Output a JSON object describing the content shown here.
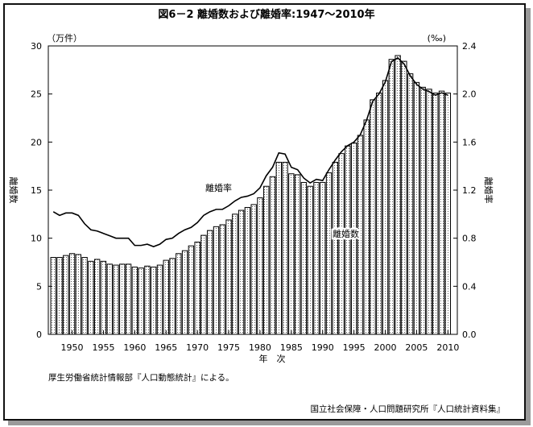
{
  "chart_data": {
    "type": "bar+line",
    "title": "図6－2 離婚数および離婚率:1947～2010年",
    "xlabel": "年　次",
    "ylabel_left": "離婚数",
    "ylabel_right": "離婚率",
    "unit_left": "（万件）",
    "unit_right": "(‰)",
    "ylim_left": [
      0,
      30
    ],
    "ylim_right": [
      0,
      2.4
    ],
    "y_ticks_left": [
      "0",
      "5",
      "10",
      "15",
      "20",
      "25",
      "30"
    ],
    "y_ticks_right": [
      "0.0",
      "0.4",
      "0.8",
      "1.2",
      "1.6",
      "2.0",
      "2.4"
    ],
    "x_ticks": [
      "1950",
      "1955",
      "1960",
      "1965",
      "1970",
      "1975",
      "1980",
      "1985",
      "1990",
      "1995",
      "2000",
      "2005",
      "2010"
    ],
    "x": [
      1947,
      1948,
      1949,
      1950,
      1951,
      1952,
      1953,
      1954,
      1955,
      1956,
      1957,
      1958,
      1959,
      1960,
      1961,
      1962,
      1963,
      1964,
      1965,
      1966,
      1967,
      1968,
      1969,
      1970,
      1971,
      1972,
      1973,
      1974,
      1975,
      1976,
      1977,
      1978,
      1979,
      1980,
      1981,
      1982,
      1983,
      1984,
      1985,
      1986,
      1987,
      1988,
      1989,
      1990,
      1991,
      1992,
      1993,
      1994,
      1995,
      1996,
      1997,
      1998,
      1999,
      2000,
      2001,
      2002,
      2003,
      2004,
      2005,
      2006,
      2007,
      2008,
      2009,
      2010
    ],
    "series": [
      {
        "name": "離婚数",
        "type": "bar",
        "axis": "left",
        "values": [
          8.0,
          8.0,
          8.2,
          8.4,
          8.3,
          8.0,
          7.6,
          7.8,
          7.6,
          7.3,
          7.2,
          7.3,
          7.3,
          7.0,
          6.9,
          7.1,
          7.0,
          7.2,
          7.7,
          7.9,
          8.4,
          8.7,
          9.2,
          9.6,
          10.3,
          10.8,
          11.2,
          11.4,
          11.9,
          12.5,
          12.9,
          13.2,
          13.5,
          14.2,
          15.4,
          16.4,
          17.9,
          17.9,
          16.7,
          16.6,
          15.8,
          15.4,
          15.8,
          15.8,
          16.8,
          17.9,
          18.8,
          19.6,
          19.9,
          20.7,
          22.3,
          24.4,
          25.1,
          26.4,
          28.6,
          29.0,
          28.4,
          27.1,
          26.2,
          25.7,
          25.5,
          25.1,
          25.3,
          25.1
        ]
      },
      {
        "name": "離婚率",
        "type": "line",
        "axis": "right",
        "values": [
          1.02,
          0.99,
          1.01,
          1.01,
          0.99,
          0.92,
          0.87,
          0.86,
          0.84,
          0.82,
          0.8,
          0.8,
          0.8,
          0.74,
          0.74,
          0.75,
          0.73,
          0.75,
          0.79,
          0.8,
          0.84,
          0.87,
          0.89,
          0.93,
          0.99,
          1.02,
          1.04,
          1.04,
          1.07,
          1.11,
          1.14,
          1.15,
          1.17,
          1.22,
          1.32,
          1.39,
          1.51,
          1.5,
          1.39,
          1.37,
          1.3,
          1.26,
          1.29,
          1.28,
          1.37,
          1.45,
          1.52,
          1.57,
          1.6,
          1.66,
          1.78,
          1.94,
          2.0,
          2.1,
          2.27,
          2.3,
          2.25,
          2.15,
          2.08,
          2.04,
          2.02,
          1.99,
          2.01,
          1.99
        ]
      }
    ],
    "annotations": [
      "離婚率",
      "離婚数"
    ],
    "grid": false
  },
  "notes": {
    "source_left": "厚生労働省統計情報部『人口動態統計』による。",
    "source_right": "国立社会保障・人口問題研究所『人口統計資料集』"
  }
}
